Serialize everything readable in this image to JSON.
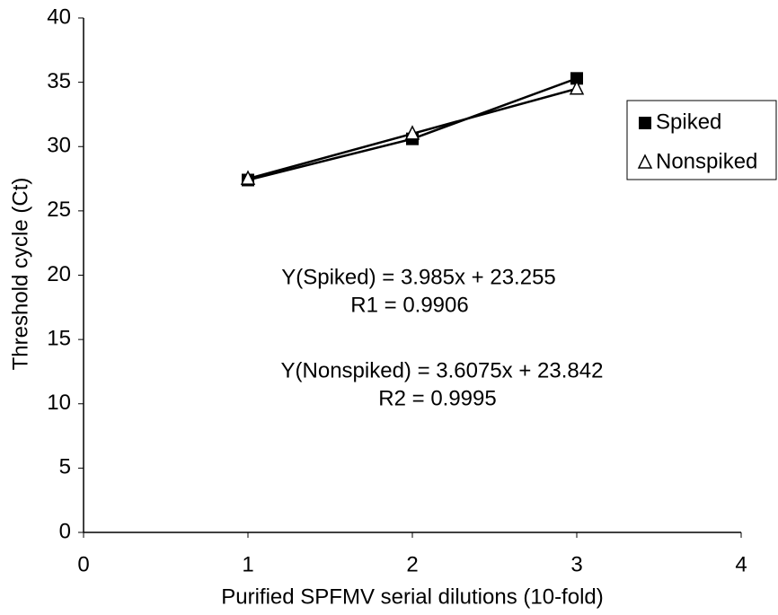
{
  "chart_data": {
    "type": "line",
    "x_label": "Purified SPFMV serial dilutions (10-fold)",
    "y_label": "Threshold cycle (Ct)",
    "x": [
      1,
      2,
      3
    ],
    "series": [
      {
        "name": "Spiked",
        "color": "#000000",
        "marker": "square",
        "values": [
          27.4,
          30.6,
          35.3
        ]
      },
      {
        "name": "Nonspiked",
        "color": "#000000",
        "marker": "triangle",
        "values": [
          27.5,
          31.0,
          34.5
        ]
      }
    ],
    "xlim": [
      0,
      4
    ],
    "xticks": [
      0,
      1,
      2,
      3,
      4
    ],
    "ylim": [
      0,
      40
    ],
    "yticks": [
      0,
      5,
      10,
      15,
      20,
      25,
      30,
      35,
      40
    ],
    "grid": false,
    "legend": "right",
    "annotations": [
      "Y(Spiked) = 3.985x + 23.255",
      "R1 = 0.9906",
      "Y(Nonspiked) = 3.6075x + 23.842",
      "R2 = 0.9995"
    ]
  }
}
